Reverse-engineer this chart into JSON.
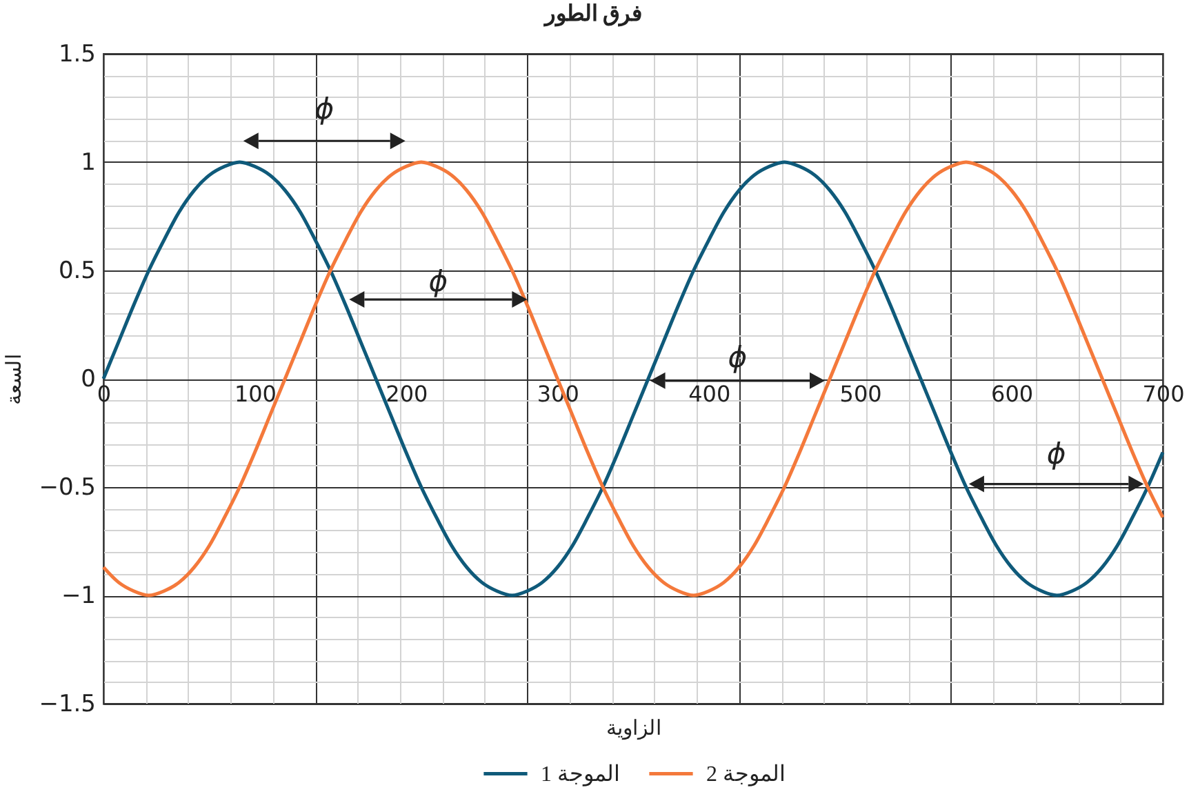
{
  "chart_data": {
    "type": "line",
    "title": "فرق الطور",
    "xlabel": "الزاوية",
    "ylabel": "السعة",
    "x": [
      0,
      10,
      20,
      30,
      40,
      50,
      60,
      70,
      80,
      90,
      100,
      110,
      120,
      130,
      140,
      150,
      160,
      170,
      180,
      190,
      200,
      210,
      220,
      230,
      240,
      250,
      260,
      270,
      280,
      290,
      300,
      310,
      320,
      330,
      340,
      350,
      360,
      370,
      380,
      390,
      400,
      410,
      420,
      430,
      440,
      450,
      460,
      470,
      480,
      490,
      500,
      510,
      520,
      530,
      540,
      550,
      560,
      570,
      580,
      590,
      600,
      610,
      620,
      630,
      640,
      650,
      660,
      670,
      680,
      690,
      700
    ],
    "series": [
      {
        "name": "الموجة 1",
        "color": "#0f5a7a",
        "values": [
          0,
          0.17,
          0.34,
          0.5,
          0.64,
          0.77,
          0.87,
          0.94,
          0.98,
          1,
          0.98,
          0.94,
          0.87,
          0.77,
          0.64,
          0.5,
          0.34,
          0.17,
          0,
          -0.17,
          -0.34,
          -0.5,
          -0.64,
          -0.77,
          -0.87,
          -0.94,
          -0.98,
          -1,
          -0.98,
          -0.94,
          -0.87,
          -0.77,
          -0.64,
          -0.5,
          -0.34,
          -0.17,
          0,
          0.17,
          0.34,
          0.5,
          0.64,
          0.77,
          0.87,
          0.94,
          0.98,
          1,
          0.98,
          0.94,
          0.87,
          0.77,
          0.64,
          0.5,
          0.34,
          0.17,
          0,
          -0.17,
          -0.34,
          -0.5,
          -0.64,
          -0.77,
          -0.87,
          -0.94,
          -0.98,
          -1,
          -0.98,
          -0.94,
          -0.87,
          -0.77,
          -0.64,
          -0.5,
          -0.34
        ]
      },
      {
        "name": "الموجة 2",
        "color": "#f4793b",
        "values": [
          -0.87,
          -0.94,
          -0.98,
          -1,
          -0.98,
          -0.94,
          -0.87,
          -0.77,
          -0.64,
          -0.5,
          -0.34,
          -0.17,
          0,
          0.17,
          0.34,
          0.5,
          0.64,
          0.77,
          0.87,
          0.94,
          0.98,
          1,
          0.98,
          0.94,
          0.87,
          0.77,
          0.64,
          0.5,
          0.34,
          0.17,
          0,
          -0.17,
          -0.34,
          -0.5,
          -0.64,
          -0.77,
          -0.87,
          -0.94,
          -0.98,
          -1,
          -0.98,
          -0.94,
          -0.87,
          -0.77,
          -0.64,
          -0.5,
          -0.34,
          -0.17,
          0,
          0.17,
          0.34,
          0.5,
          0.64,
          0.77,
          0.87,
          0.94,
          0.98,
          1,
          0.98,
          0.94,
          0.87,
          0.77,
          0.64,
          0.5,
          0.34,
          0.17,
          0,
          -0.17,
          -0.34,
          -0.5,
          -0.64
        ]
      }
    ],
    "xlim": [
      0,
      700
    ],
    "ylim": [
      -1.5,
      1.5
    ],
    "xticks": [
      0,
      100,
      {
        "value": 140,
        "label": null
      },
      200,
      {
        "value": 280,
        "label": null
      },
      300,
      400,
      {
        "value": 420,
        "label": null
      },
      500,
      {
        "value": 560,
        "label": null
      },
      600,
      700
    ],
    "yticks": [
      -1.5,
      -1,
      -0.5,
      0,
      0.5,
      1,
      1.5
    ],
    "grid": true,
    "legend": "bottom",
    "annotations": [
      "ϕ",
      "ϕ",
      "ϕ",
      "ϕ"
    ]
  }
}
